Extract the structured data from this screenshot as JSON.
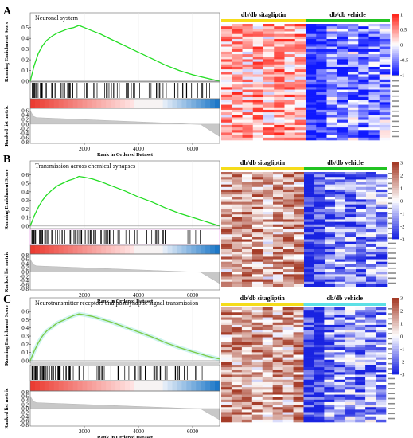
{
  "chart_data": [
    {
      "panel": "A",
      "type": "line",
      "title": "Neuronal system",
      "ylabel_top": "Running Enrichment Score",
      "ylabel_bottom": "Ranked list metric",
      "xlabel": "Rank in Ordered Dataset",
      "x_ticks": [
        "2000",
        "4000",
        "6000"
      ],
      "y_ticks_top": [
        "0.5",
        "0.4",
        "0.3",
        "0.2",
        "0.1",
        "0.0"
      ],
      "y_ticks_bottom": [
        "0.6",
        "0.4",
        "0.2",
        "0.0",
        "-0.2",
        "-0.4",
        "-0.6",
        "-0.8"
      ],
      "ylim_top": [
        0,
        0.55
      ],
      "ylim_bottom": [
        -0.85,
        0.7
      ],
      "xlim": [
        0,
        7000
      ],
      "x": [
        0,
        150,
        300,
        450,
        600,
        800,
        1000,
        1200,
        1400,
        1600,
        1800,
        2000,
        2300,
        2600,
        3000,
        3500,
        4000,
        4500,
        5000,
        5500,
        6000,
        6500,
        7000
      ],
      "es": [
        0.0,
        0.15,
        0.26,
        0.33,
        0.38,
        0.42,
        0.45,
        0.47,
        0.49,
        0.5,
        0.52,
        0.5,
        0.47,
        0.44,
        0.39,
        0.33,
        0.27,
        0.21,
        0.15,
        0.1,
        0.06,
        0.03,
        0.0
      ],
      "line_color": "#22dd22",
      "heatmap": {
        "left_group": "db/db sitagliptin",
        "right_group": "db/db vehicle",
        "left_bar_color": "#f5dc1a",
        "right_bar_color": "#22c322",
        "scale_labels": [
          "1",
          "0.5",
          "0",
          "-0.5",
          "-1"
        ]
      }
    },
    {
      "panel": "B",
      "type": "line",
      "title": "Transmission across chemical synapses",
      "ylabel_top": "Running Enrichment Score",
      "ylabel_bottom": "Ranked list metric",
      "xlabel": "Rank in Ordered Dataset",
      "x_ticks": [
        "2000",
        "4000",
        "6000"
      ],
      "y_ticks_top": [
        "0.6",
        "0.5",
        "0.4",
        "0.3",
        "0.2",
        "0.1",
        "0.0"
      ],
      "y_ticks_bottom": [
        "0.8",
        "0.6",
        "0.4",
        "0.2",
        "0.0",
        "-0.2",
        "-0.4",
        "-0.6",
        "-0.8"
      ],
      "ylim_top": [
        -0.03,
        0.65
      ],
      "ylim_bottom": [
        -0.85,
        0.85
      ],
      "xlim": [
        0,
        7000
      ],
      "x": [
        0,
        150,
        300,
        450,
        600,
        800,
        1000,
        1200,
        1400,
        1600,
        1800,
        2000,
        2300,
        2600,
        3000,
        3500,
        4000,
        4500,
        5000,
        5500,
        6000,
        6500,
        7000
      ],
      "es": [
        0.0,
        0.12,
        0.22,
        0.3,
        0.36,
        0.42,
        0.47,
        0.5,
        0.53,
        0.55,
        0.58,
        0.57,
        0.55,
        0.52,
        0.47,
        0.41,
        0.34,
        0.28,
        0.21,
        0.15,
        0.1,
        0.05,
        0.0
      ],
      "line_color": "#22dd22",
      "heatmap": {
        "left_group": "db/db sitagliptin",
        "right_group": "db/db vehicle",
        "left_bar_color": "#f5dc1a",
        "right_bar_color": "#22c322",
        "scale_labels": [
          "3",
          "2",
          "1",
          "0",
          "-1",
          "-2",
          "-3"
        ]
      }
    },
    {
      "panel": "C",
      "type": "line",
      "title": "Neurotransmitter receptors and postsynaptic signal transmission",
      "ylabel_top": "Running Enrichment Score",
      "ylabel_bottom": "Ranked list metric",
      "xlabel": "Rank in Ordered Dataset",
      "x_ticks": [
        "2000",
        "4000",
        "6000"
      ],
      "y_ticks_top": [
        "0.6",
        "0.5",
        "0.4",
        "0.3",
        "0.2",
        "0.1",
        "0.0"
      ],
      "y_ticks_bottom": [
        "0.8",
        "0.6",
        "0.4",
        "0.2",
        "0.0",
        "-0.2",
        "-0.4",
        "-0.6",
        "-0.8"
      ],
      "ylim_top": [
        -0.03,
        0.65
      ],
      "ylim_bottom": [
        -0.85,
        0.85
      ],
      "xlim": [
        0,
        7000
      ],
      "x": [
        0,
        150,
        300,
        450,
        600,
        800,
        1000,
        1200,
        1400,
        1600,
        1800,
        2000,
        2300,
        2600,
        3000,
        3500,
        4000,
        4500,
        5000,
        5500,
        6000,
        6500,
        7000
      ],
      "es": [
        0.0,
        0.12,
        0.22,
        0.3,
        0.36,
        0.41,
        0.46,
        0.49,
        0.52,
        0.55,
        0.57,
        0.56,
        0.54,
        0.51,
        0.47,
        0.41,
        0.35,
        0.29,
        0.22,
        0.16,
        0.11,
        0.06,
        0.02
      ],
      "line_color": "#7ac943",
      "heatmap": {
        "left_group": "db/db sitagliptin",
        "right_group": "db/db vehicle",
        "left_bar_color": "#f5dc1a",
        "right_bar_color": "#5ce0e6",
        "scale_labels": [
          "3",
          "2",
          "1",
          "0",
          "-1",
          "-2",
          "-3"
        ]
      }
    }
  ]
}
